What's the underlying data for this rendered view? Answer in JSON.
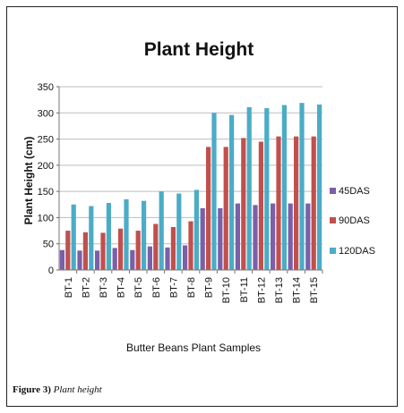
{
  "chart_data": {
    "type": "bar",
    "title": "Plant Height",
    "xlabel": "Butter Beans Plant Samples",
    "ylabel": "Plant Height (cm)",
    "ylim": [
      0,
      350
    ],
    "yticks": [
      0,
      50,
      100,
      150,
      200,
      250,
      300,
      350
    ],
    "grid": true,
    "legend_position": "right",
    "categories": [
      "BT-1",
      "BT-2",
      "BT-3",
      "BT-4",
      "BT-5",
      "BT-6",
      "BT-7",
      "BT-8",
      "BT-9",
      "BT-10",
      "BT-11",
      "BT-12",
      "BT-13",
      "BT-14",
      "BT-15"
    ],
    "series": [
      {
        "name": "45DAS",
        "color": "#7b5fa8",
        "values": [
          38,
          37,
          37,
          42,
          38,
          45,
          43,
          47,
          118,
          118,
          127,
          124,
          127,
          127,
          127
        ]
      },
      {
        "name": "90DAS",
        "color": "#c0504d",
        "values": [
          75,
          72,
          71,
          79,
          75,
          88,
          82,
          93,
          235,
          235,
          252,
          245,
          255,
          255,
          255
        ]
      },
      {
        "name": "120DAS",
        "color": "#4bacc6",
        "values": [
          125,
          122,
          128,
          135,
          132,
          150,
          146,
          153,
          300,
          296,
          311,
          309,
          315,
          319,
          316
        ]
      }
    ]
  },
  "caption": {
    "label": "Figure 3)",
    "text": "Plant height"
  }
}
